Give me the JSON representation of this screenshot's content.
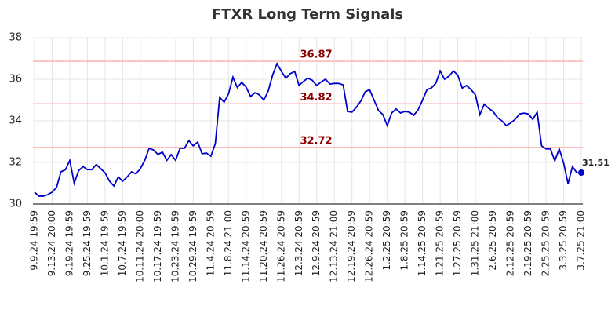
{
  "chart_data": {
    "type": "line",
    "title": "FTXR Long Term Signals",
    "categories": [
      "9.9.24 19:59",
      null,
      null,
      null,
      "9.13.24 20:00",
      null,
      null,
      null,
      "9.19.24 19:59",
      null,
      null,
      null,
      "9.25.24 19:59",
      null,
      null,
      null,
      "10.1.24 19:59",
      null,
      null,
      null,
      "10.7.24 19:59",
      null,
      null,
      null,
      "10.11.24 20:00",
      null,
      null,
      null,
      "10.17.24 19:59",
      null,
      null,
      null,
      "10.23.24 19:59",
      null,
      null,
      null,
      "10.29.24 19:59",
      null,
      null,
      null,
      "11.4.24 20:59",
      null,
      null,
      null,
      "11.8.24 21:00",
      null,
      null,
      null,
      "11.14.24 20:59",
      null,
      null,
      null,
      "11.20.24 20:59",
      null,
      null,
      null,
      "11.26.24 20:59",
      null,
      null,
      null,
      "12.3.24 20:59",
      null,
      null,
      null,
      "12.9.24 20:59",
      null,
      null,
      null,
      "12.13.24 21:00",
      null,
      null,
      null,
      "12.19.24 20:59",
      null,
      null,
      null,
      "12.26.24 20:59",
      null,
      null,
      null,
      "1.2.25 20:59",
      null,
      null,
      null,
      "1.8.25 20:59",
      null,
      null,
      null,
      "1.14.25 20:59",
      null,
      null,
      null,
      "1.21.25 20:59",
      null,
      null,
      null,
      "1.27.25 20:59",
      null,
      null,
      null,
      "1.31.25 21:00",
      null,
      null,
      null,
      "2.6.25 20:59",
      null,
      null,
      null,
      "2.12.25 20:59",
      null,
      null,
      null,
      "2.19.25 20:59",
      null,
      null,
      null,
      "2.25.25 20:59",
      null,
      null,
      null,
      "3.3.25 20:59",
      null,
      null,
      null,
      "3.7.25 21:00"
    ],
    "values": [
      30.57,
      30.38,
      30.38,
      30.45,
      30.57,
      30.8,
      31.55,
      31.65,
      32.1,
      31.0,
      31.6,
      31.8,
      31.65,
      31.65,
      31.9,
      31.7,
      31.5,
      31.1,
      30.87,
      31.3,
      31.1,
      31.3,
      31.55,
      31.45,
      31.7,
      32.1,
      32.68,
      32.6,
      32.38,
      32.5,
      32.1,
      32.38,
      32.1,
      32.68,
      32.68,
      33.05,
      32.8,
      32.98,
      32.42,
      32.45,
      32.3,
      32.9,
      35.13,
      34.9,
      35.3,
      36.1,
      35.6,
      35.85,
      35.62,
      35.17,
      35.35,
      35.25,
      35.0,
      35.43,
      36.2,
      36.75,
      36.38,
      36.05,
      36.27,
      36.38,
      35.7,
      35.9,
      36.05,
      35.95,
      35.7,
      35.87,
      36.0,
      35.77,
      35.8,
      35.8,
      35.73,
      34.45,
      34.42,
      34.65,
      34.95,
      35.4,
      35.5,
      35.0,
      34.5,
      34.3,
      33.77,
      34.38,
      34.57,
      34.38,
      34.45,
      34.42,
      34.27,
      34.53,
      35.0,
      35.5,
      35.58,
      35.8,
      36.4,
      36.0,
      36.15,
      36.4,
      36.2,
      35.58,
      35.7,
      35.5,
      35.25,
      34.3,
      34.8,
      34.6,
      34.45,
      34.15,
      34.0,
      33.77,
      33.9,
      34.07,
      34.33,
      34.37,
      34.33,
      34.07,
      34.42,
      32.8,
      32.65,
      32.65,
      32.08,
      32.65,
      31.97,
      30.98,
      31.8,
      31.5,
      31.51
    ],
    "color": "#0000cc",
    "hlines": [
      36.87,
      34.82,
      32.72
    ],
    "hline_color": "#ffb3b3",
    "hline_label_color": "#8b0000",
    "ylim": [
      30,
      38
    ],
    "yticks": [
      30,
      32,
      34,
      36,
      38
    ],
    "grid": true
  }
}
